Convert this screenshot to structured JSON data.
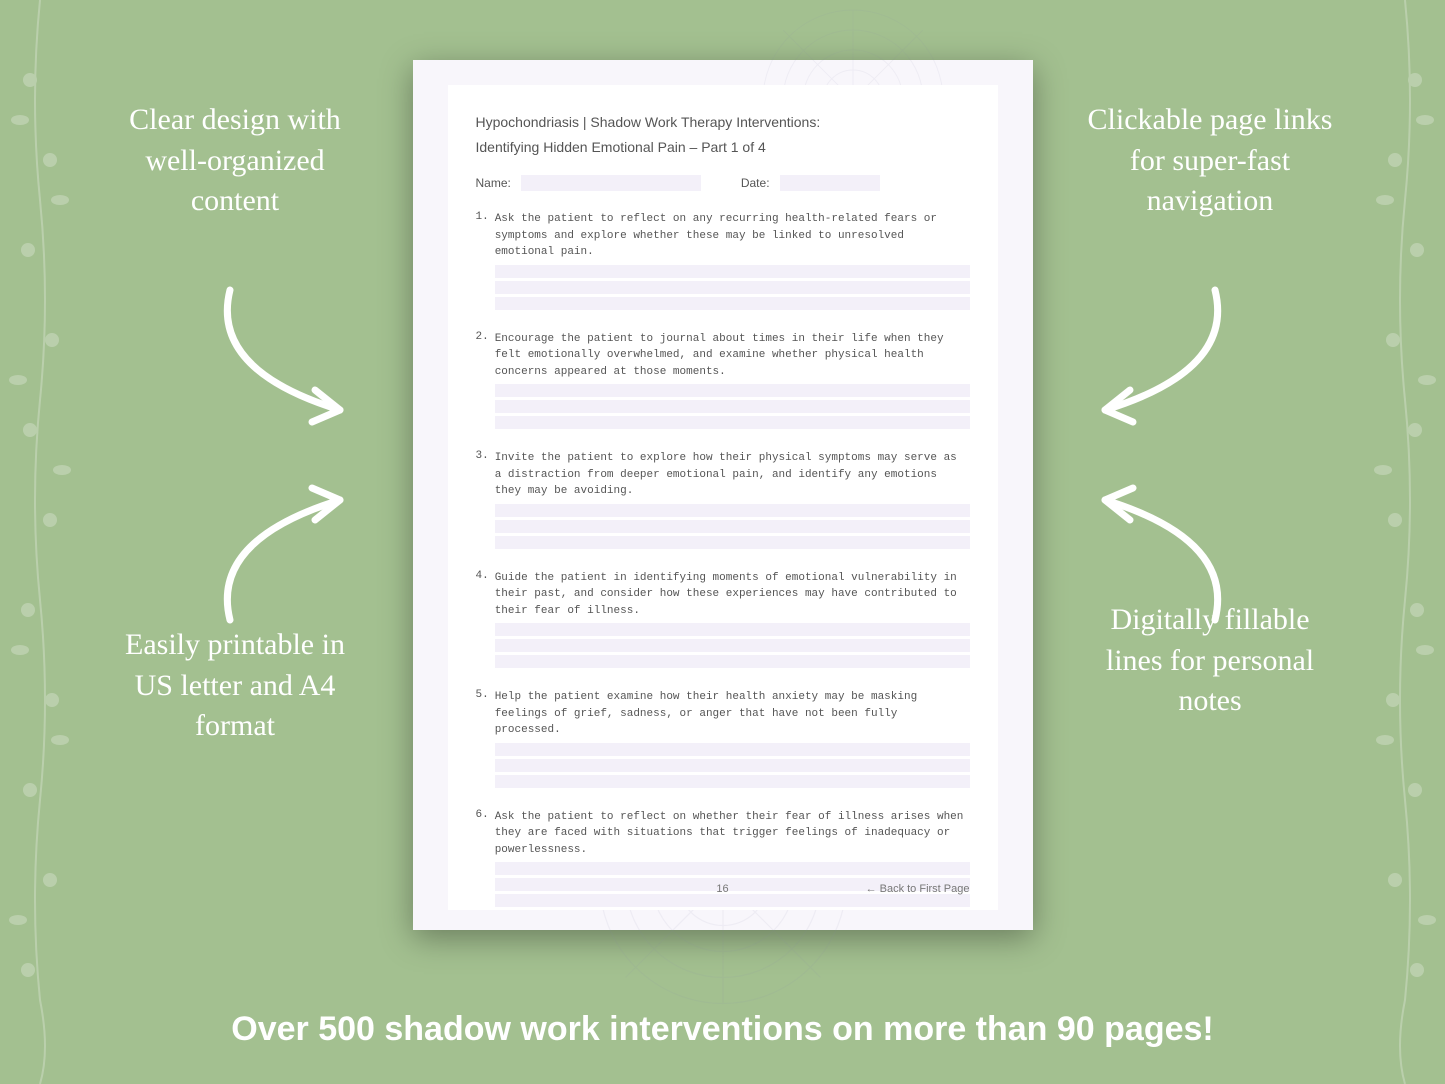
{
  "background_color": "#a3c090",
  "callouts": {
    "top_left": "Clear design with well-organized content",
    "top_right": "Clickable page links for super-fast navigation",
    "bottom_left": "Easily printable in US letter and A4 format",
    "bottom_right": "Digitally fillable lines for personal notes"
  },
  "banner": "Over 500 shadow work interventions on more than 90 pages!",
  "page": {
    "title_line1": "Hypochondriasis | Shadow Work Therapy Interventions:",
    "title_line2": "Identifying Hidden Emotional Pain  – Part 1 of 4",
    "name_label": "Name:",
    "date_label": "Date:",
    "page_number": "16",
    "back_link": "← Back to First Page",
    "fill_color": "#f3f0f9",
    "questions": [
      {
        "n": "1.",
        "t": "Ask the patient to reflect on any recurring health-related fears or symptoms and explore whether these may be linked to unresolved emotional pain."
      },
      {
        "n": "2.",
        "t": "Encourage the patient to journal about times in their life when they felt emotionally overwhelmed, and examine whether physical health concerns appeared at those moments."
      },
      {
        "n": "3.",
        "t": "Invite the patient to explore how their physical symptoms may serve as a distraction from deeper emotional pain, and identify any emotions they may be avoiding."
      },
      {
        "n": "4.",
        "t": "Guide the patient in identifying moments of emotional vulnerability in their past, and consider how these experiences may have contributed to their fear of illness."
      },
      {
        "n": "5.",
        "t": "Help the patient examine how their health anxiety may be masking feelings of grief, sadness, or anger that have not been fully processed."
      },
      {
        "n": "6.",
        "t": "Ask the patient to reflect on whether their fear of illness arises when they are faced with situations that trigger feelings of inadequacy or powerlessness."
      }
    ]
  },
  "styling": {
    "callout_color": "#ffffff",
    "callout_fontsize": 30,
    "banner_fontsize": 34,
    "arrow_color": "#ffffff",
    "arrow_stroke_width": 7,
    "page_bg": "#f8f6fb",
    "page_inner_bg": "#ffffff",
    "page_shadow": "0 8px 30px rgba(0,0,0,0.35)"
  }
}
